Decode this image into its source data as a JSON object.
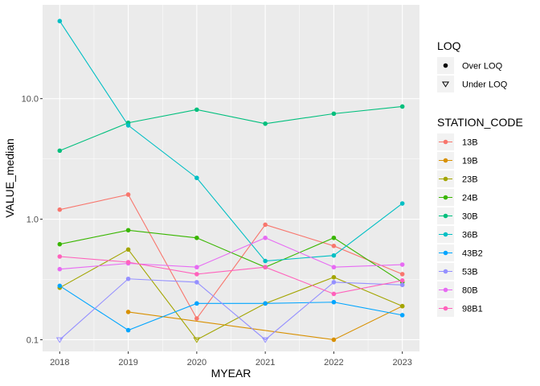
{
  "chart_data": {
    "type": "line",
    "xlabel": "MYEAR",
    "ylabel": "VALUE_median",
    "x": [
      2018,
      2019,
      2020,
      2021,
      2022,
      2023
    ],
    "x_ticks": [
      "2018",
      "2019",
      "2020",
      "2021",
      "2022",
      "2023"
    ],
    "y_scale": "log10",
    "ylim": [
      0.08,
      60
    ],
    "y_ticks": [
      0.1,
      1.0,
      10.0
    ],
    "y_tick_labels": [
      "0.1",
      "1.0",
      "10.0"
    ],
    "grid": true,
    "background": "#EBEBEB",
    "legend_placement": "right",
    "legend_loq": {
      "title": "LOQ",
      "entries": [
        {
          "label": "Over LOQ",
          "shape": "filled-circle"
        },
        {
          "label": "Under LOQ",
          "shape": "open-down-triangle"
        }
      ]
    },
    "legend_station": {
      "title": "STATION_CODE"
    },
    "series": [
      {
        "name": "13B",
        "color": "#F8766D",
        "points": [
          {
            "x": 2018,
            "y": 1.2,
            "loq": "over"
          },
          {
            "x": 2019,
            "y": 1.6,
            "loq": "over"
          },
          {
            "x": 2020,
            "y": 0.15,
            "loq": "over"
          },
          {
            "x": 2021,
            "y": 0.9,
            "loq": "over"
          },
          {
            "x": 2022,
            "y": 0.6,
            "loq": "over"
          },
          {
            "x": 2023,
            "y": 0.35,
            "loq": "over"
          }
        ]
      },
      {
        "name": "19B",
        "color": "#D89000",
        "points": [
          {
            "x": 2019,
            "y": 0.17,
            "loq": "over"
          },
          {
            "x": 2022,
            "y": 0.1,
            "loq": "over"
          },
          {
            "x": 2023,
            "y": 0.19,
            "loq": "over"
          }
        ]
      },
      {
        "name": "23B",
        "color": "#A3A500",
        "points": [
          {
            "x": 2018,
            "y": 0.27,
            "loq": "over"
          },
          {
            "x": 2019,
            "y": 0.56,
            "loq": "over"
          },
          {
            "x": 2020,
            "y": 0.1,
            "loq": "under"
          },
          {
            "x": 2021,
            "y": 0.2,
            "loq": "over"
          },
          {
            "x": 2022,
            "y": 0.33,
            "loq": "over"
          },
          {
            "x": 2023,
            "y": 0.19,
            "loq": "over"
          }
        ]
      },
      {
        "name": "24B",
        "color": "#39B600",
        "points": [
          {
            "x": 2018,
            "y": 0.62,
            "loq": "over"
          },
          {
            "x": 2019,
            "y": 0.81,
            "loq": "over"
          },
          {
            "x": 2020,
            "y": 0.7,
            "loq": "over"
          },
          {
            "x": 2021,
            "y": 0.4,
            "loq": "over"
          },
          {
            "x": 2022,
            "y": 0.7,
            "loq": "over"
          },
          {
            "x": 2023,
            "y": 0.3,
            "loq": "over"
          }
        ]
      },
      {
        "name": "30B",
        "color": "#00BF7D",
        "points": [
          {
            "x": 2018,
            "y": 3.7,
            "loq": "over"
          },
          {
            "x": 2019,
            "y": 6.3,
            "loq": "over"
          },
          {
            "x": 2020,
            "y": 8.1,
            "loq": "over"
          },
          {
            "x": 2021,
            "y": 6.2,
            "loq": "over"
          },
          {
            "x": 2022,
            "y": 7.5,
            "loq": "over"
          },
          {
            "x": 2023,
            "y": 8.6,
            "loq": "over"
          }
        ]
      },
      {
        "name": "36B",
        "color": "#00BFC4",
        "points": [
          {
            "x": 2018,
            "y": 44,
            "loq": "over"
          },
          {
            "x": 2019,
            "y": 6.0,
            "loq": "over"
          },
          {
            "x": 2020,
            "y": 2.2,
            "loq": "over"
          },
          {
            "x": 2021,
            "y": 0.45,
            "loq": "over"
          },
          {
            "x": 2022,
            "y": 0.5,
            "loq": "over"
          },
          {
            "x": 2023,
            "y": 1.35,
            "loq": "over"
          }
        ]
      },
      {
        "name": "43B2",
        "color": "#00A5FF",
        "points": [
          {
            "x": 2018,
            "y": 0.28,
            "loq": "over"
          },
          {
            "x": 2019,
            "y": 0.12,
            "loq": "over"
          },
          {
            "x": 2020,
            "y": 0.2,
            "loq": "over"
          },
          {
            "x": 2021,
            "y": 0.2,
            "loq": "over"
          },
          {
            "x": 2022,
            "y": 0.205,
            "loq": "over"
          },
          {
            "x": 2023,
            "y": 0.16,
            "loq": "over"
          }
        ]
      },
      {
        "name": "53B",
        "color": "#9590FF",
        "points": [
          {
            "x": 2018,
            "y": 0.1,
            "loq": "under"
          },
          {
            "x": 2019,
            "y": 0.32,
            "loq": "over"
          },
          {
            "x": 2020,
            "y": 0.3,
            "loq": "over"
          },
          {
            "x": 2021,
            "y": 0.1,
            "loq": "under"
          },
          {
            "x": 2022,
            "y": 0.3,
            "loq": "over"
          },
          {
            "x": 2023,
            "y": 0.285,
            "loq": "over"
          }
        ]
      },
      {
        "name": "80B",
        "color": "#E76BF3",
        "points": [
          {
            "x": 2018,
            "y": 0.385,
            "loq": "over"
          },
          {
            "x": 2019,
            "y": 0.43,
            "loq": "over"
          },
          {
            "x": 2020,
            "y": 0.4,
            "loq": "over"
          },
          {
            "x": 2021,
            "y": 0.7,
            "loq": "over"
          },
          {
            "x": 2022,
            "y": 0.4,
            "loq": "over"
          },
          {
            "x": 2023,
            "y": 0.42,
            "loq": "over"
          }
        ]
      },
      {
        "name": "98B1",
        "color": "#FF62BC",
        "points": [
          {
            "x": 2018,
            "y": 0.49,
            "loq": "over"
          },
          {
            "x": 2019,
            "y": 0.44,
            "loq": "over"
          },
          {
            "x": 2020,
            "y": 0.35,
            "loq": "over"
          },
          {
            "x": 2021,
            "y": 0.4,
            "loq": "over"
          },
          {
            "x": 2022,
            "y": 0.24,
            "loq": "over"
          },
          {
            "x": 2023,
            "y": 0.31,
            "loq": "over"
          }
        ]
      }
    ]
  }
}
